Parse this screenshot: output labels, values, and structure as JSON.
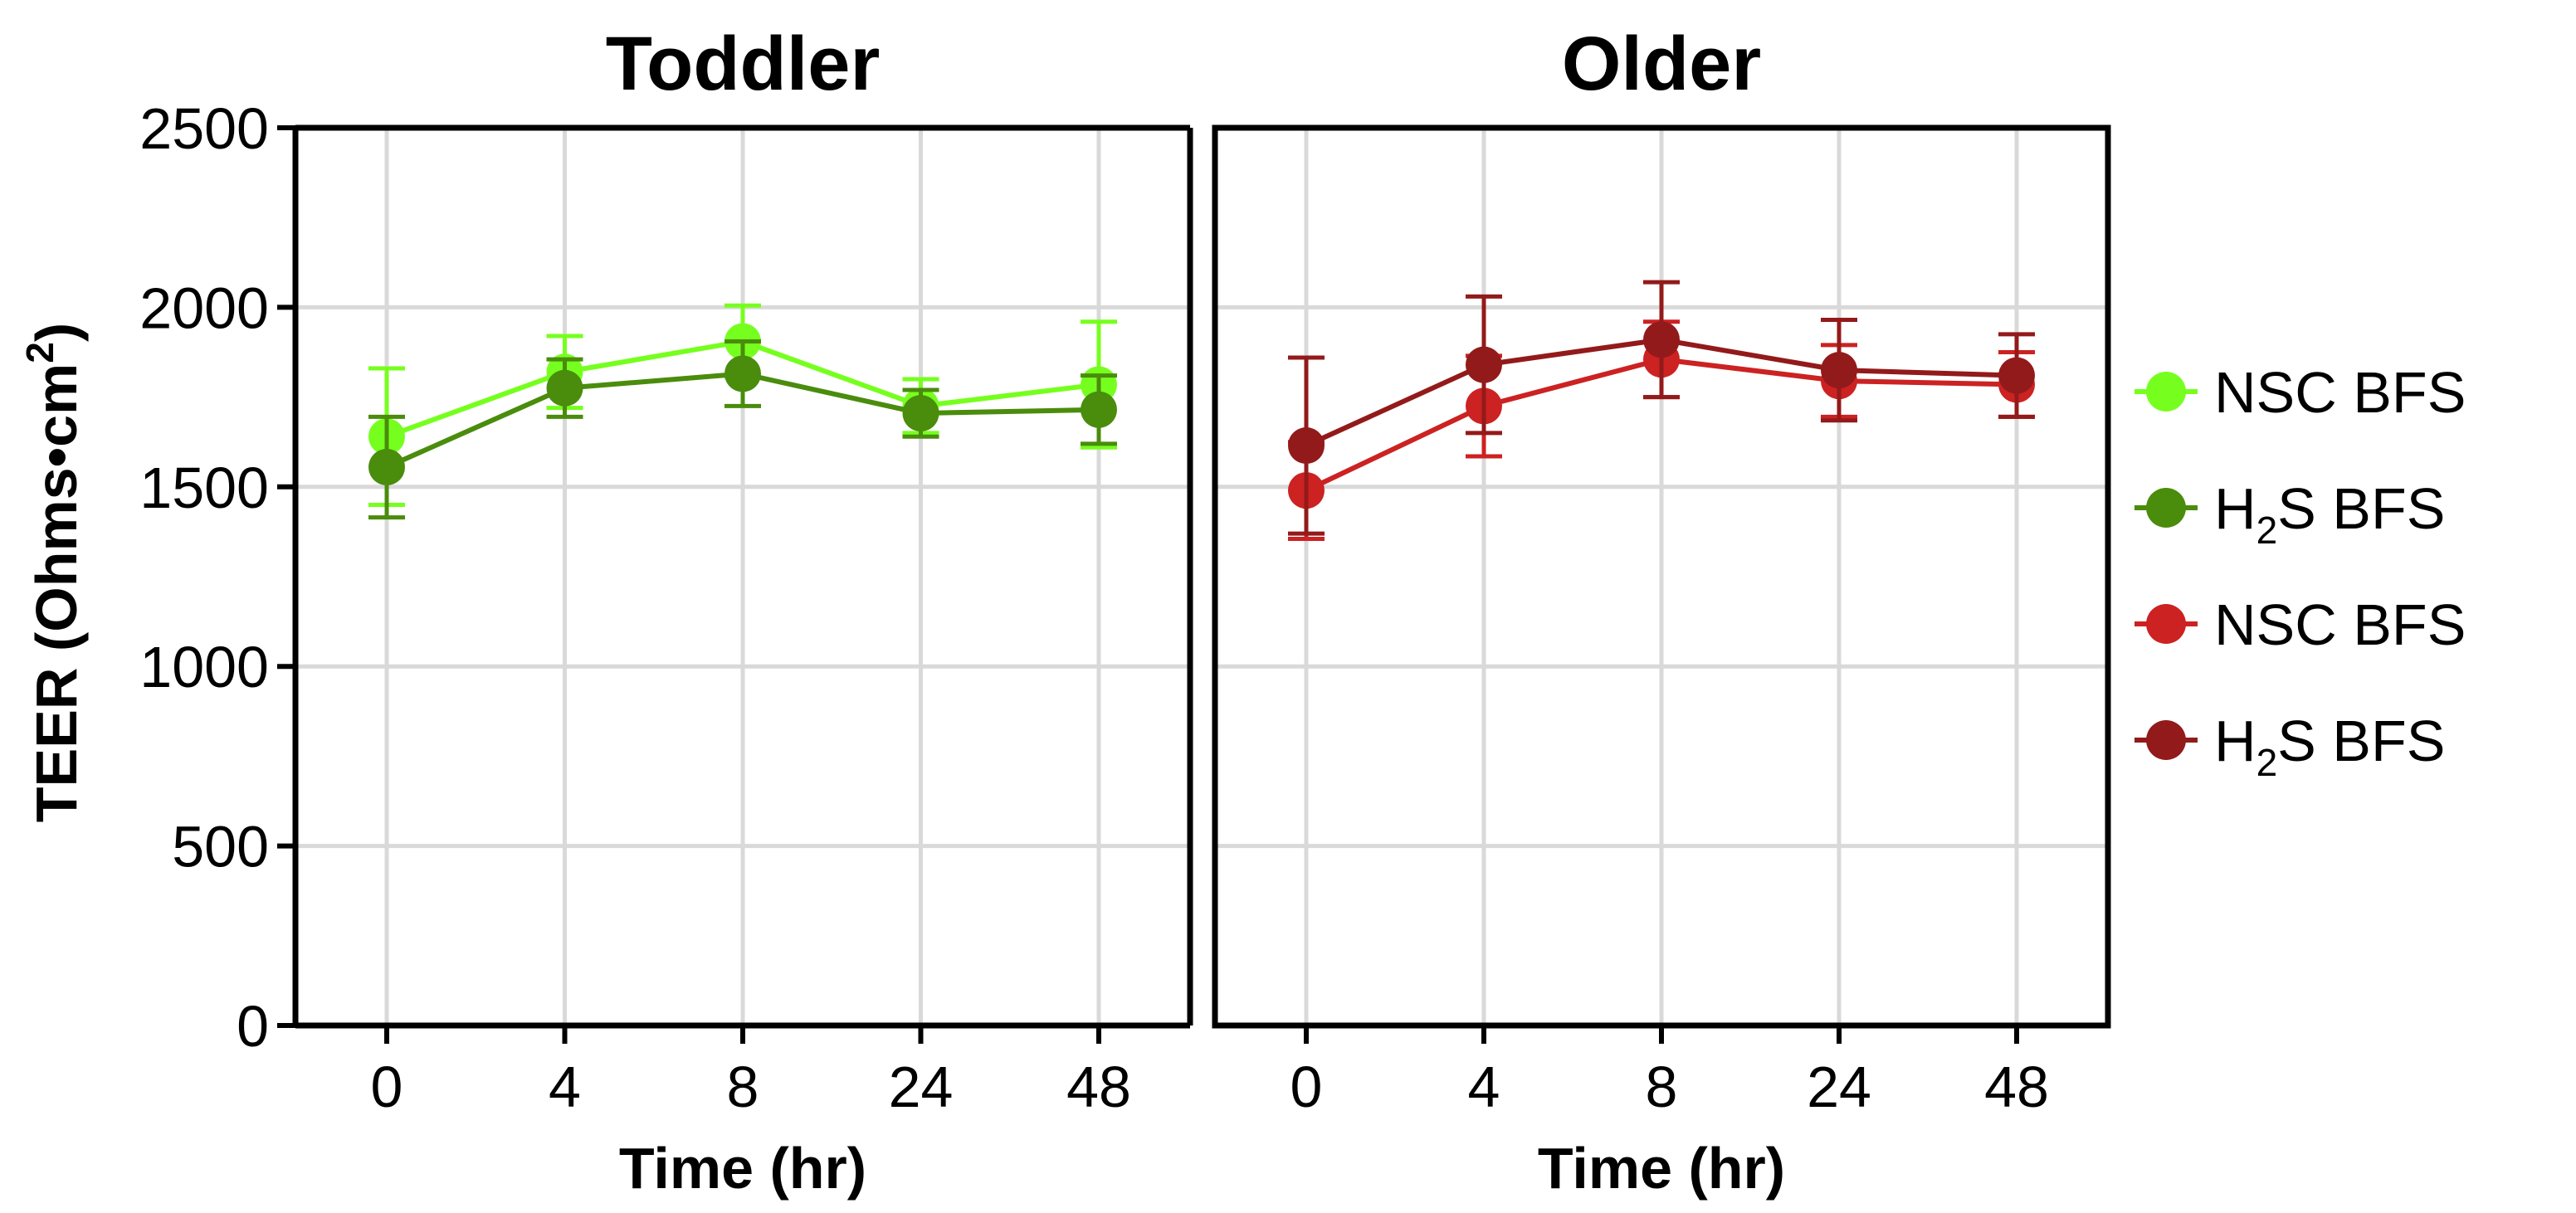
{
  "chart_data": {
    "type": "line",
    "ylabel": "TEER (Ohms•cm",
    "ylabel_superscript": "2",
    "ylabel_close": ")",
    "ylim": [
      0,
      2500
    ],
    "yticks": [
      "0",
      "500",
      "1000",
      "1500",
      "2000",
      "2500"
    ],
    "ytick_values": [
      0,
      500,
      1000,
      1500,
      2000,
      2500
    ],
    "categories": [
      "0",
      "4",
      "8",
      "24",
      "48"
    ],
    "xlabel": "Time (hr)",
    "grid": true,
    "legend_position": "right",
    "panels": [
      {
        "title": "Toddler",
        "series": [
          {
            "name": "NSC BFS",
            "color": "#76ff1e",
            "values": [
              1640,
              1820,
              1905,
              1725,
              1785
            ],
            "errors": [
              190,
              100,
              100,
              75,
              175
            ]
          },
          {
            "name": "H2S BFS",
            "color": "#4a8c0c",
            "values": [
              1555,
              1775,
              1815,
              1705,
              1715
            ],
            "errors": [
              140,
              80,
              90,
              65,
              95
            ]
          }
        ]
      },
      {
        "title": "Older",
        "series": [
          {
            "name": "NSC BFS",
            "color": "#cc2222",
            "values": [
              1490,
              1725,
              1855,
              1795,
              1785
            ],
            "errors": [
              135,
              140,
              105,
              100,
              90
            ]
          },
          {
            "name": "H2S BFS",
            "color": "#931a1a",
            "values": [
              1615,
              1840,
              1910,
              1825,
              1810
            ],
            "errors": [
              245,
              190,
              160,
              140,
              115
            ]
          }
        ]
      }
    ],
    "legend": [
      {
        "pre": "NSC BFS",
        "sub": "",
        "post": "",
        "color": "#76ff1e"
      },
      {
        "pre": "H",
        "sub": "2",
        "post": "S BFS",
        "color": "#4a8c0c"
      },
      {
        "pre": "NSC BFS",
        "sub": "",
        "post": "",
        "color": "#cc2222"
      },
      {
        "pre": "H",
        "sub": "2",
        "post": "S BFS",
        "color": "#931a1a"
      }
    ]
  }
}
